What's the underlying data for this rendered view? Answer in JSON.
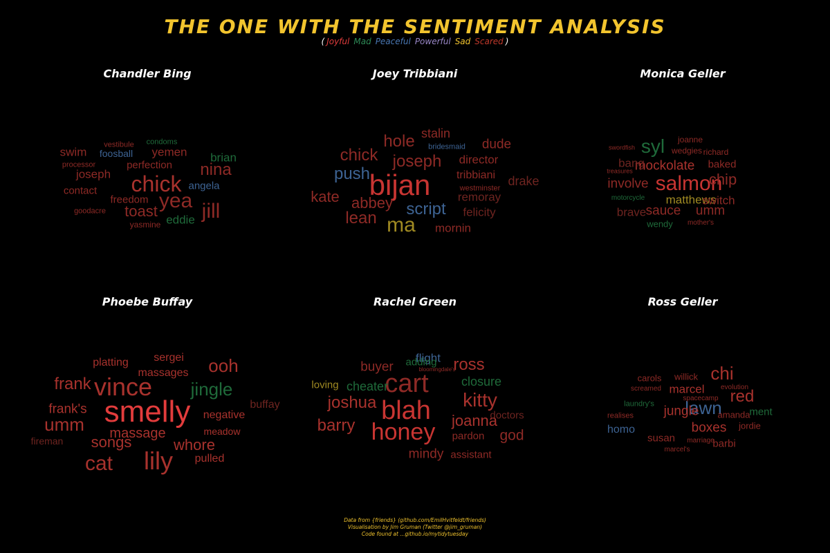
{
  "title": "THE ONE WITH THE SENTIMENT ANALYSIS",
  "legend": {
    "open": "(",
    "close": ")",
    "items": [
      {
        "label": "Joyful",
        "color": "#e23c3c"
      },
      {
        "label": "Mad",
        "color": "#2e8b57"
      },
      {
        "label": "Peaceful",
        "color": "#4a78b4"
      },
      {
        "label": "Powerful",
        "color": "#9a88c8"
      },
      {
        "label": "Sad",
        "color": "#f2c42e"
      },
      {
        "label": "Scared",
        "color": "#c0392b"
      }
    ]
  },
  "credits": [
    "Data from {friends} (github.com/EmilHvitfeldt/friends)",
    "Visualisation by Jim Gruman (Twitter @jim_gruman)",
    "Code found at ...github.io/mytidytuesday"
  ],
  "chart_data": [
    {
      "type": "wordcloud",
      "title": "Chandler Bing",
      "words": [
        {
          "text": "chick",
          "size": 32,
          "color": "#a8322d"
        },
        {
          "text": "yea",
          "size": 30,
          "color": "#8e2a26"
        },
        {
          "text": "jill",
          "size": 30,
          "color": "#8e2a26"
        },
        {
          "text": "nina",
          "size": 24,
          "color": "#8e2a26"
        },
        {
          "text": "toast",
          "size": 22,
          "color": "#8e2a26"
        },
        {
          "text": "swim",
          "size": 17,
          "color": "#8e2a26"
        },
        {
          "text": "yemen",
          "size": 17,
          "color": "#8e2a26"
        },
        {
          "text": "joseph",
          "size": 17,
          "color": "#8e2a26"
        },
        {
          "text": "brian",
          "size": 17,
          "color": "#1f6a3a"
        },
        {
          "text": "freedom",
          "size": 15,
          "color": "#8e2a26"
        },
        {
          "text": "contact",
          "size": 15,
          "color": "#8e2a26"
        },
        {
          "text": "eddie",
          "size": 17,
          "color": "#1f6a3a"
        },
        {
          "text": "perfection",
          "size": 15,
          "color": "#8e2a26"
        },
        {
          "text": "angela",
          "size": 15,
          "color": "#3d6393"
        },
        {
          "text": "foosball",
          "size": 14,
          "color": "#3d6393"
        },
        {
          "text": "vestibule",
          "size": 11,
          "color": "#8e2a26"
        },
        {
          "text": "condoms",
          "size": 11,
          "color": "#1f6a3a"
        },
        {
          "text": "processor",
          "size": 11,
          "color": "#8e2a26"
        },
        {
          "text": "goodacre",
          "size": 11,
          "color": "#8e2a26"
        },
        {
          "text": "yasmine",
          "size": 12,
          "color": "#8e2a26"
        }
      ]
    },
    {
      "type": "wordcloud",
      "title": "Joey Tribbiani",
      "words": [
        {
          "text": "bijan",
          "size": 42,
          "color": "#c83532"
        },
        {
          "text": "ma",
          "size": 30,
          "color": "#a08a22"
        },
        {
          "text": "chick",
          "size": 24,
          "color": "#8e2a26"
        },
        {
          "text": "hole",
          "size": 24,
          "color": "#8e2a26"
        },
        {
          "text": "push",
          "size": 24,
          "color": "#3d6393"
        },
        {
          "text": "joseph",
          "size": 24,
          "color": "#8e2a26"
        },
        {
          "text": "script",
          "size": 24,
          "color": "#3d6393"
        },
        {
          "text": "lean",
          "size": 24,
          "color": "#8e2a26"
        },
        {
          "text": "kate",
          "size": 22,
          "color": "#8e2a26"
        },
        {
          "text": "abbey",
          "size": 22,
          "color": "#8e2a26"
        },
        {
          "text": "stalin",
          "size": 18,
          "color": "#8e2a26"
        },
        {
          "text": "dude",
          "size": 19,
          "color": "#8e2a26"
        },
        {
          "text": "director",
          "size": 17,
          "color": "#8e2a26"
        },
        {
          "text": "tribbiani",
          "size": 16,
          "color": "#8e2a26"
        },
        {
          "text": "drake",
          "size": 18,
          "color": "#6e2420"
        },
        {
          "text": "remoray",
          "size": 17,
          "color": "#6e2420"
        },
        {
          "text": "felicity",
          "size": 17,
          "color": "#6e2420"
        },
        {
          "text": "mornin",
          "size": 17,
          "color": "#8e2a26"
        },
        {
          "text": "bridesmaid",
          "size": 11,
          "color": "#3d6393"
        },
        {
          "text": "westminster",
          "size": 11,
          "color": "#8e2a26"
        }
      ]
    },
    {
      "type": "wordcloud",
      "title": "Monica Geller",
      "words": [
        {
          "text": "salmon",
          "size": 30,
          "color": "#c83532"
        },
        {
          "text": "syl",
          "size": 28,
          "color": "#1f6a3a"
        },
        {
          "text": "mockolate",
          "size": 19,
          "color": "#a8322d"
        },
        {
          "text": "involve",
          "size": 19,
          "color": "#8e2a26"
        },
        {
          "text": "chip",
          "size": 22,
          "color": "#8e2a26"
        },
        {
          "text": "sauce",
          "size": 19,
          "color": "#8e2a26"
        },
        {
          "text": "umm",
          "size": 19,
          "color": "#8e2a26"
        },
        {
          "text": "matthews",
          "size": 17,
          "color": "#a08a22"
        },
        {
          "text": "bang",
          "size": 17,
          "color": "#6e2420"
        },
        {
          "text": "brave",
          "size": 17,
          "color": "#6e2420"
        },
        {
          "text": "switch",
          "size": 17,
          "color": "#8e2a26"
        },
        {
          "text": "baked",
          "size": 15,
          "color": "#8e2a26"
        },
        {
          "text": "joanne",
          "size": 12,
          "color": "#8e2a26"
        },
        {
          "text": "wedgies",
          "size": 12,
          "color": "#8e2a26"
        },
        {
          "text": "richard",
          "size": 12,
          "color": "#8e2a26"
        },
        {
          "text": "swordfish",
          "size": 9,
          "color": "#8e2a26"
        },
        {
          "text": "treasures",
          "size": 9,
          "color": "#8e2a26"
        },
        {
          "text": "motorcycle",
          "size": 10,
          "color": "#1f6a3a"
        },
        {
          "text": "wendy",
          "size": 13,
          "color": "#1f6a3a"
        },
        {
          "text": "mother's",
          "size": 10,
          "color": "#8e2a26"
        }
      ]
    },
    {
      "type": "wordcloud",
      "title": "Phoebe Buffay",
      "words": [
        {
          "text": "smelly",
          "size": 44,
          "color": "#e23c3c"
        },
        {
          "text": "vince",
          "size": 36,
          "color": "#a8322d"
        },
        {
          "text": "lily",
          "size": 36,
          "color": "#a8322d"
        },
        {
          "text": "cat",
          "size": 30,
          "color": "#a8322d"
        },
        {
          "text": "umm",
          "size": 26,
          "color": "#a8322d"
        },
        {
          "text": "ooh",
          "size": 26,
          "color": "#a8322d"
        },
        {
          "text": "jingle",
          "size": 26,
          "color": "#1f6a3a"
        },
        {
          "text": "frank",
          "size": 24,
          "color": "#a8322d"
        },
        {
          "text": "songs",
          "size": 22,
          "color": "#a8322d"
        },
        {
          "text": "whore",
          "size": 22,
          "color": "#a8322d"
        },
        {
          "text": "massage",
          "size": 20,
          "color": "#a8322d"
        },
        {
          "text": "frank's",
          "size": 19,
          "color": "#a8322d"
        },
        {
          "text": "platting",
          "size": 16,
          "color": "#a8322d"
        },
        {
          "text": "sergei",
          "size": 16,
          "color": "#a8322d"
        },
        {
          "text": "massages",
          "size": 16,
          "color": "#a8322d"
        },
        {
          "text": "negative",
          "size": 16,
          "color": "#a8322d"
        },
        {
          "text": "pulled",
          "size": 16,
          "color": "#a8322d"
        },
        {
          "text": "buffay",
          "size": 16,
          "color": "#6e2420"
        },
        {
          "text": "meadow",
          "size": 14,
          "color": "#a8322d"
        },
        {
          "text": "fireman",
          "size": 14,
          "color": "#6e2420"
        }
      ]
    },
    {
      "type": "wordcloud",
      "title": "Rachel Green",
      "words": [
        {
          "text": "cart",
          "size": 38,
          "color": "#8e2a26"
        },
        {
          "text": "blah",
          "size": 38,
          "color": "#c83532"
        },
        {
          "text": "honey",
          "size": 34,
          "color": "#c83532"
        },
        {
          "text": "kitty",
          "size": 28,
          "color": "#a8322d"
        },
        {
          "text": "joshua",
          "size": 24,
          "color": "#a8322d"
        },
        {
          "text": "ross",
          "size": 24,
          "color": "#a8322d"
        },
        {
          "text": "barry",
          "size": 24,
          "color": "#a8322d"
        },
        {
          "text": "joanna",
          "size": 22,
          "color": "#a8322d"
        },
        {
          "text": "god",
          "size": 21,
          "color": "#8e2a26"
        },
        {
          "text": "buyer",
          "size": 19,
          "color": "#8e2a26"
        },
        {
          "text": "mindy",
          "size": 19,
          "color": "#8e2a26"
        },
        {
          "text": "flight",
          "size": 17,
          "color": "#3d6393"
        },
        {
          "text": "cheater",
          "size": 18,
          "color": "#1f6a3a"
        },
        {
          "text": "closure",
          "size": 18,
          "color": "#1f6a3a"
        },
        {
          "text": "loving",
          "size": 15,
          "color": "#a08a22"
        },
        {
          "text": "doctors",
          "size": 15,
          "color": "#6e2420"
        },
        {
          "text": "pardon",
          "size": 15,
          "color": "#8e2a26"
        },
        {
          "text": "assistant",
          "size": 15,
          "color": "#8e2a26"
        },
        {
          "text": "adding",
          "size": 15,
          "color": "#1f6a3a"
        },
        {
          "text": "bloomingdale's",
          "size": 8,
          "color": "#8e2a26"
        }
      ]
    },
    {
      "type": "wordcloud",
      "title": "Ross Geller",
      "words": [
        {
          "text": "lawn",
          "size": 26,
          "color": "#3d6393"
        },
        {
          "text": "chi",
          "size": 26,
          "color": "#a8322d"
        },
        {
          "text": "red",
          "size": 24,
          "color": "#a8322d"
        },
        {
          "text": "jungle",
          "size": 19,
          "color": "#a8322d"
        },
        {
          "text": "boxes",
          "size": 19,
          "color": "#a8322d"
        },
        {
          "text": "marcel",
          "size": 17,
          "color": "#a8322d"
        },
        {
          "text": "homo",
          "size": 16,
          "color": "#3d6393"
        },
        {
          "text": "susan",
          "size": 15,
          "color": "#8e2a26"
        },
        {
          "text": "barbi",
          "size": 15,
          "color": "#8e2a26"
        },
        {
          "text": "ment",
          "size": 15,
          "color": "#1f6a3a"
        },
        {
          "text": "carols",
          "size": 13,
          "color": "#8e2a26"
        },
        {
          "text": "willick",
          "size": 13,
          "color": "#8e2a26"
        },
        {
          "text": "amanda",
          "size": 13,
          "color": "#8e2a26"
        },
        {
          "text": "jordie",
          "size": 13,
          "color": "#8e2a26"
        },
        {
          "text": "laundry's",
          "size": 11,
          "color": "#1f6a3a"
        },
        {
          "text": "realises",
          "size": 11,
          "color": "#8e2a26"
        },
        {
          "text": "screamed",
          "size": 10,
          "color": "#8e2a26"
        },
        {
          "text": "evolution",
          "size": 10,
          "color": "#8e2a26"
        },
        {
          "text": "spacecamp",
          "size": 10,
          "color": "#8e2a26"
        },
        {
          "text": "marriage",
          "size": 10,
          "color": "#8e2a26"
        },
        {
          "text": "marcel's",
          "size": 10,
          "color": "#8e2a26"
        }
      ]
    }
  ]
}
